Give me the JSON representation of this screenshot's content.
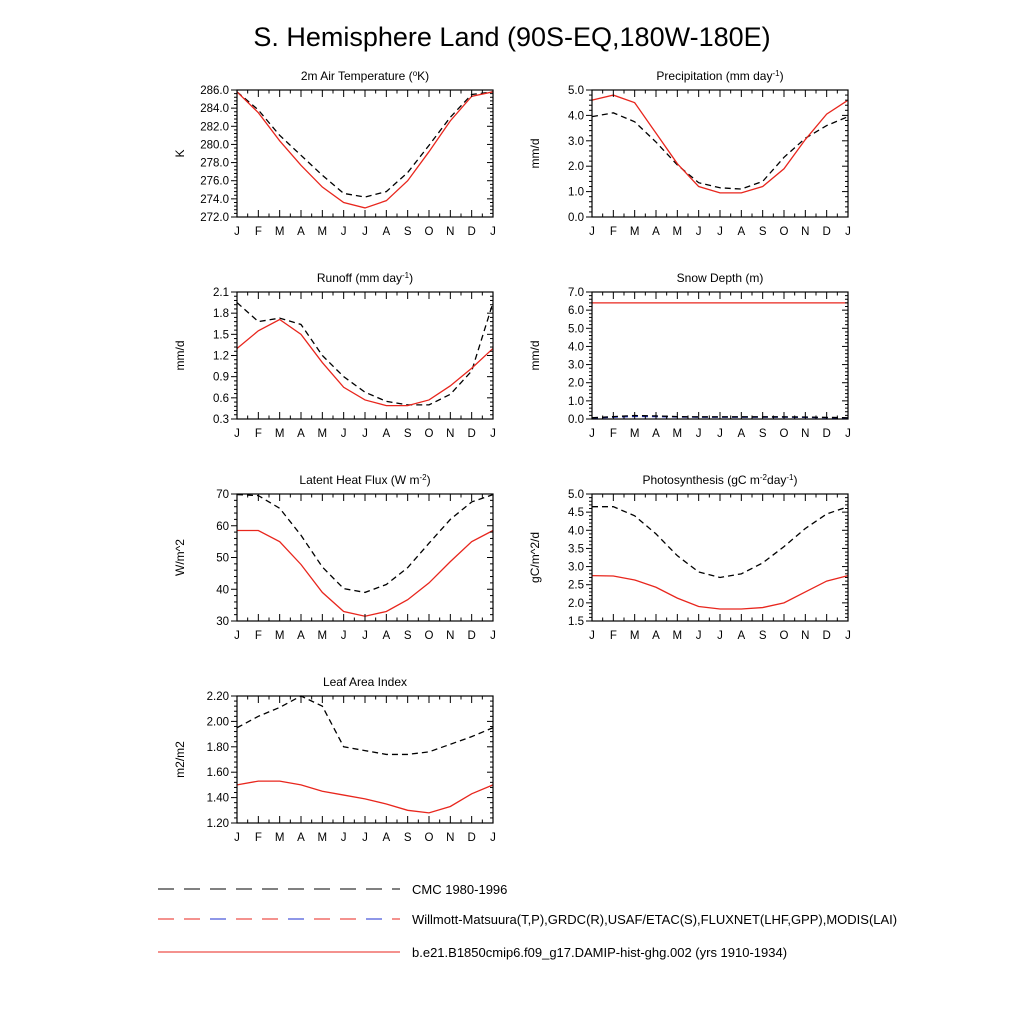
{
  "figure": {
    "title": "S. Hemisphere Land (90S-EQ,180W-180E)",
    "months": [
      "J",
      "F",
      "M",
      "A",
      "M",
      "J",
      "J",
      "A",
      "S",
      "O",
      "N",
      "D",
      "J"
    ]
  },
  "colors": {
    "model": "#e8261d",
    "obs": "#000000",
    "obs_alt": "#1e2fd0"
  },
  "legend": [
    {
      "label": "CMC 1980-1996",
      "style": "dashed",
      "color": "#000000"
    },
    {
      "label": "Willmott-Matsuura(T,P),GRDC(R),USAF/ETAC(S),FLUXNET(LHF,GPP),MODIS(LAI)",
      "style": "dashed",
      "color": "#e8261d",
      "alt_color": "#1e2fd0"
    },
    {
      "label": "b.e21.B1850cmip6.f09_g17.DAMIP-hist-ghg.002 (yrs 1910-1934)",
      "style": "solid",
      "color": "#e8261d"
    }
  ],
  "chart_data": [
    {
      "id": "t2m",
      "type": "line",
      "title": {
        "pre": "2m Air Temperature (",
        "sup": "o",
        "post": "K)"
      },
      "ylabel": "K",
      "ylim": [
        272,
        286
      ],
      "yticks": [
        272,
        274,
        276,
        278,
        280,
        282,
        284,
        286
      ],
      "yticklabels": [
        "272.0",
        "274.0",
        "276.0",
        "278.0",
        "280.0",
        "282.0",
        "284.0",
        "286.0"
      ],
      "x": [
        0,
        1,
        2,
        3,
        4,
        5,
        6,
        7,
        8,
        9,
        10,
        11,
        12
      ],
      "series": [
        {
          "style": "dashed",
          "color": "#000000",
          "values": [
            285.8,
            283.8,
            281.0,
            278.8,
            276.6,
            274.6,
            274.2,
            274.8,
            276.9,
            279.9,
            283.0,
            285.5,
            285.8
          ]
        },
        {
          "style": "solid",
          "color": "#e8261d",
          "values": [
            285.8,
            283.5,
            280.4,
            277.7,
            275.3,
            273.6,
            273.0,
            273.8,
            276.0,
            279.2,
            282.6,
            285.3,
            285.8
          ]
        }
      ]
    },
    {
      "id": "precip",
      "type": "line",
      "title": {
        "pre": "Precipitation (mm day",
        "sup": "-1",
        "post": ")"
      },
      "ylabel": "mm/d",
      "ylim": [
        0,
        5
      ],
      "yticks": [
        0,
        1,
        2,
        3,
        4,
        5
      ],
      "yticklabels": [
        "0.0",
        "1.0",
        "2.0",
        "3.0",
        "4.0",
        "5.0"
      ],
      "x": [
        0,
        1,
        2,
        3,
        4,
        5,
        6,
        7,
        8,
        9,
        10,
        11,
        12
      ],
      "series": [
        {
          "style": "dashed",
          "color": "#000000",
          "values": [
            3.95,
            4.1,
            3.75,
            2.95,
            2.05,
            1.35,
            1.15,
            1.1,
            1.4,
            2.35,
            3.1,
            3.6,
            3.95
          ]
        },
        {
          "style": "solid",
          "color": "#e8261d",
          "values": [
            4.6,
            4.8,
            4.5,
            3.3,
            2.1,
            1.2,
            0.95,
            0.95,
            1.2,
            1.9,
            3.05,
            4.05,
            4.6
          ]
        }
      ]
    },
    {
      "id": "runoff",
      "type": "line",
      "title": {
        "pre": "Runoff (mm day",
        "sup": "-1",
        "post": ")"
      },
      "ylabel": "mm/d",
      "ylim": [
        0.3,
        2.1
      ],
      "yticks": [
        0.3,
        0.6,
        0.9,
        1.2,
        1.5,
        1.8,
        2.1
      ],
      "yticklabels": [
        "0.3",
        "0.6",
        "0.9",
        "1.2",
        "1.5",
        "1.8",
        "2.1"
      ],
      "x": [
        0,
        1,
        2,
        3,
        4,
        5,
        6,
        7,
        8,
        9,
        10,
        11,
        12
      ],
      "series": [
        {
          "style": "dashed",
          "color": "#000000",
          "values": [
            1.95,
            1.68,
            1.73,
            1.64,
            1.2,
            0.9,
            0.68,
            0.55,
            0.5,
            0.5,
            0.65,
            0.98,
            1.95
          ]
        },
        {
          "style": "solid",
          "color": "#e8261d",
          "values": [
            1.3,
            1.55,
            1.71,
            1.5,
            1.1,
            0.75,
            0.57,
            0.49,
            0.49,
            0.57,
            0.77,
            1.02,
            1.3
          ]
        }
      ]
    },
    {
      "id": "snow",
      "type": "line",
      "title": {
        "pre": "Snow Depth (m)",
        "sup": "",
        "post": ""
      },
      "ylabel": "mm/d",
      "ylim": [
        0,
        7
      ],
      "yticks": [
        0,
        1,
        2,
        3,
        4,
        5,
        6,
        7
      ],
      "yticklabels": [
        "0.0",
        "1.0",
        "2.0",
        "3.0",
        "4.0",
        "5.0",
        "6.0",
        "7.0"
      ],
      "x": [
        0,
        1,
        2,
        3,
        4,
        5,
        6,
        7,
        8,
        9,
        10,
        11,
        12
      ],
      "series": [
        {
          "style": "dashed",
          "color": "#1e2fd0",
          "values": [
            0.05,
            0.1,
            0.14,
            0.13,
            0.11,
            0.1,
            0.1,
            0.1,
            0.1,
            0.1,
            0.09,
            0.07,
            0.05
          ]
        },
        {
          "style": "dashed",
          "color": "#000000",
          "values": [
            0.07,
            0.13,
            0.19,
            0.17,
            0.13,
            0.12,
            0.12,
            0.12,
            0.12,
            0.12,
            0.11,
            0.09,
            0.07
          ]
        },
        {
          "style": "solid",
          "color": "#e8261d",
          "values": [
            6.4,
            6.4,
            6.4,
            6.4,
            6.4,
            6.4,
            6.4,
            6.4,
            6.4,
            6.4,
            6.4,
            6.4,
            6.4
          ]
        }
      ]
    },
    {
      "id": "lhf",
      "type": "line",
      "title": {
        "pre": "Latent Heat Flux (W m",
        "sup": "-2",
        "post": ")"
      },
      "ylabel": "W/m^2",
      "ylim": [
        30,
        70
      ],
      "yticks": [
        30,
        40,
        50,
        60,
        70
      ],
      "yticklabels": [
        "30",
        "40",
        "50",
        "60",
        "70"
      ],
      "x": [
        0,
        1,
        2,
        3,
        4,
        5,
        6,
        7,
        8,
        9,
        10,
        11,
        12
      ],
      "series": [
        {
          "style": "dashed",
          "color": "#000000",
          "values": [
            69.8,
            69.5,
            65.5,
            57.0,
            47.0,
            40.2,
            39.0,
            41.5,
            46.8,
            54.5,
            62.0,
            67.5,
            69.8
          ]
        },
        {
          "style": "solid",
          "color": "#e8261d",
          "values": [
            58.5,
            58.5,
            55.0,
            47.8,
            39.0,
            33.0,
            31.5,
            33.0,
            36.7,
            42.0,
            48.7,
            55.0,
            58.5
          ]
        }
      ]
    },
    {
      "id": "gpp",
      "type": "line",
      "title": {
        "pre": "Photosynthesis (gC m",
        "sup": "-2",
        "post": "day",
        "sup2": "-1",
        "post2": ")"
      },
      "ylabel": "gC/m^2/d",
      "ylim": [
        1.5,
        5.0
      ],
      "yticks": [
        1.5,
        2.0,
        2.5,
        3.0,
        3.5,
        4.0,
        4.5,
        5.0
      ],
      "yticklabels": [
        "1.5",
        "2.0",
        "2.5",
        "3.0",
        "3.5",
        "4.0",
        "4.5",
        "5.0"
      ],
      "x": [
        0,
        1,
        2,
        3,
        4,
        5,
        6,
        7,
        8,
        9,
        10,
        11,
        12
      ],
      "series": [
        {
          "style": "dashed",
          "color": "#000000",
          "values": [
            4.65,
            4.65,
            4.4,
            3.9,
            3.3,
            2.85,
            2.7,
            2.8,
            3.1,
            3.55,
            4.05,
            4.45,
            4.65
          ]
        },
        {
          "style": "solid",
          "color": "#e8261d",
          "values": [
            2.75,
            2.74,
            2.63,
            2.43,
            2.13,
            1.9,
            1.83,
            1.83,
            1.87,
            2.0,
            2.3,
            2.6,
            2.75
          ]
        }
      ]
    },
    {
      "id": "lai",
      "type": "line",
      "title": {
        "pre": "Leaf Area Index",
        "sup": "",
        "post": ""
      },
      "ylabel": "m2/m2",
      "ylim": [
        1.2,
        2.2
      ],
      "yticks": [
        1.2,
        1.4,
        1.6,
        1.8,
        2.0,
        2.2
      ],
      "yticklabels": [
        "1.20",
        "1.40",
        "1.60",
        "1.80",
        "2.00",
        "2.20"
      ],
      "x": [
        0,
        1,
        2,
        3,
        4,
        5,
        6,
        7,
        8,
        9,
        10,
        11,
        12
      ],
      "series": [
        {
          "style": "dashed",
          "color": "#000000",
          "values": [
            1.95,
            2.04,
            2.11,
            2.2,
            2.12,
            1.8,
            1.77,
            1.74,
            1.74,
            1.76,
            1.82,
            1.88,
            1.95
          ]
        },
        {
          "style": "solid",
          "color": "#e8261d",
          "values": [
            1.5,
            1.53,
            1.53,
            1.5,
            1.45,
            1.42,
            1.39,
            1.35,
            1.3,
            1.28,
            1.33,
            1.43,
            1.5
          ]
        }
      ]
    }
  ]
}
